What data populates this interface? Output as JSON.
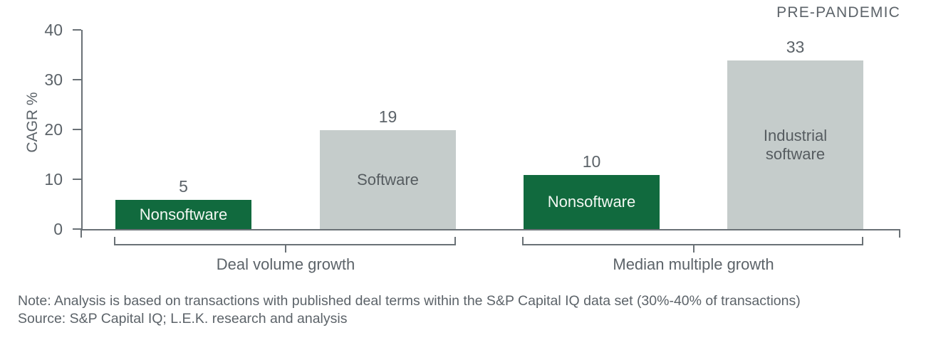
{
  "header": {
    "tag": "PRE-PANDEMIC"
  },
  "chart_data": {
    "type": "bar",
    "title": "",
    "xlabel": "",
    "ylabel": "CAGR %",
    "ylim": [
      0,
      40
    ],
    "yticks": [
      0,
      10,
      20,
      30,
      40
    ],
    "grid": false,
    "legend": "none",
    "groups": [
      {
        "label": "Deal volume growth",
        "bars": [
          {
            "label": "Nonsoftware",
            "value": 5,
            "color": "green"
          },
          {
            "label": "Software",
            "value": 19,
            "color": "gray"
          }
        ]
      },
      {
        "label": "Median multiple growth",
        "bars": [
          {
            "label": "Nonsoftware",
            "value": 10,
            "color": "green"
          },
          {
            "label": "Industrial software",
            "value": 33,
            "color": "gray"
          }
        ]
      }
    ]
  },
  "colors": {
    "green": "#116a3e",
    "gray": "#c5cccb",
    "text": "#5c6369",
    "axis": "#6a7176"
  },
  "footer": {
    "note": "Note: Analysis is based on transactions with published deal terms within the S&P Capital IQ data set (30%-40% of transactions)",
    "source": "Source: S&P Capital IQ; L.E.K. research and analysis"
  }
}
